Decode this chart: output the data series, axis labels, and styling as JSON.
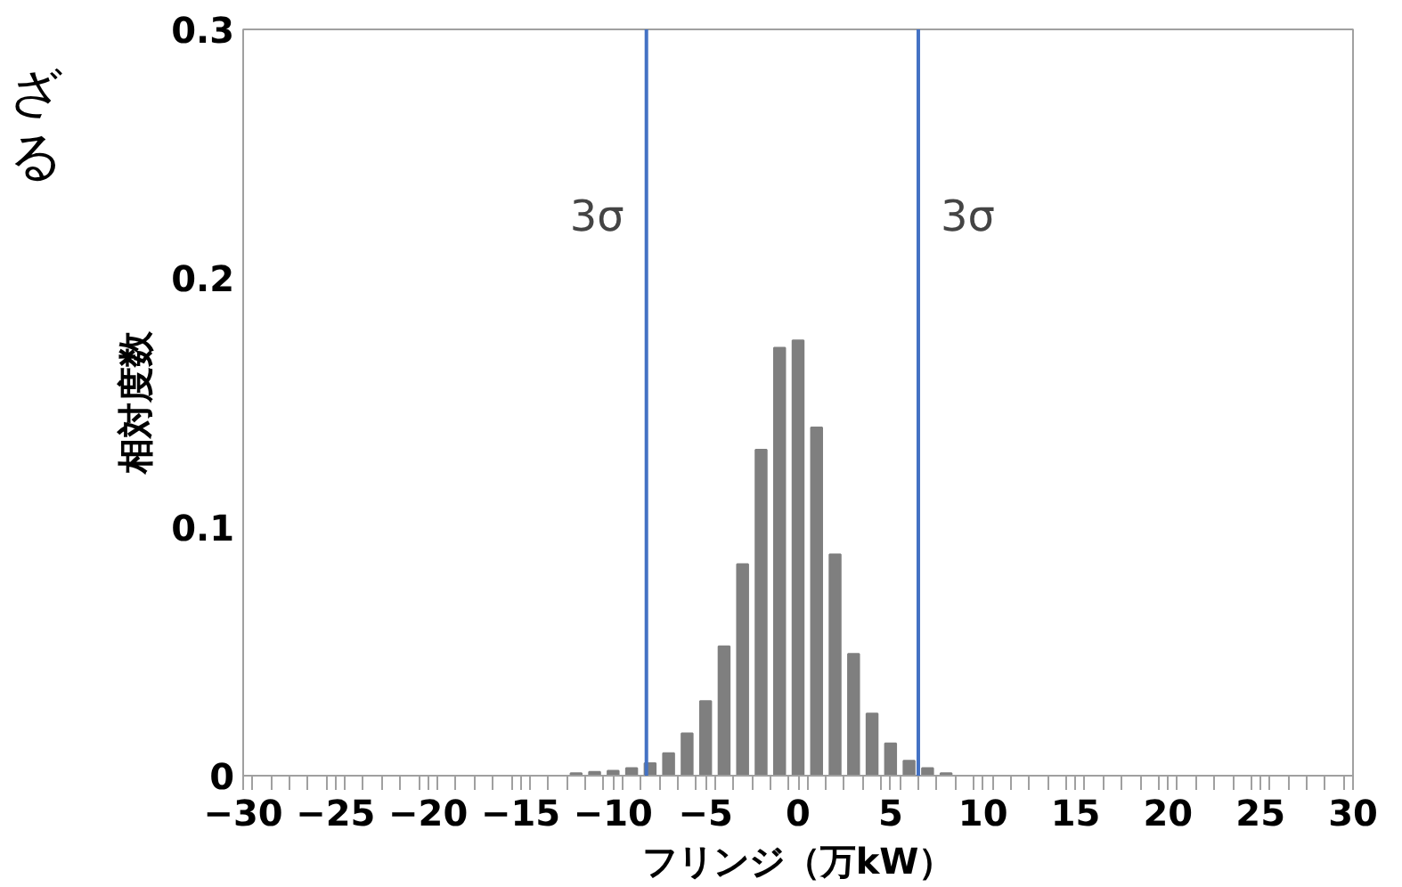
{
  "chart_data": {
    "type": "histogram",
    "xlabel": "フリンジ（万kW）",
    "ylabel": "相対度数",
    "bins": [
      -29.5,
      -28.5,
      -27.5,
      -26.5,
      -25.5,
      -24.5,
      -23.5,
      -22.5,
      -21.5,
      -20.5,
      -19.5,
      -18.5,
      -17.5,
      -16.5,
      -15.5,
      -14.5,
      -13.5,
      -12.5,
      -11.5,
      -10.5,
      -9.5,
      -8.5,
      -7.5,
      -6.5,
      -5.5,
      -4.5,
      -3.5,
      -2.5,
      -1.5,
      -0.5,
      0.5,
      1.5,
      2.5,
      3.5,
      4.5,
      5.5,
      6.5,
      7.5,
      8.5,
      9.5,
      10.5,
      11.5,
      12.5,
      13.5,
      14.5,
      15.5,
      16.5,
      17.5,
      18.5,
      19.5,
      20.5,
      21.5,
      22.5,
      23.5,
      24.5,
      25.5,
      26.5,
      27.5,
      28.5,
      29.5
    ],
    "values": [
      0,
      0,
      0,
      0,
      0,
      0,
      0,
      0,
      0,
      0,
      0,
      0,
      0,
      0,
      0,
      0,
      0,
      0.001,
      0.0015,
      0.002,
      0.003,
      0.005,
      0.009,
      0.017,
      0.03,
      0.052,
      0.085,
      0.131,
      0.172,
      0.175,
      0.14,
      0.089,
      0.049,
      0.025,
      0.013,
      0.006,
      0.003,
      0.001,
      0,
      0,
      0,
      0,
      0,
      0,
      0,
      0,
      0,
      0,
      0,
      0,
      0,
      0,
      0,
      0,
      0,
      0,
      0,
      0,
      0
    ],
    "color": "#7f7f7f",
    "xlim": [
      -30,
      30
    ],
    "xticks": [
      -30,
      -25,
      -20,
      -15,
      -10,
      -5,
      0,
      5,
      10,
      15,
      20,
      25,
      30
    ],
    "ylim": [
      0,
      0.3
    ],
    "yticks": [
      0,
      0.1,
      0.2,
      0.3
    ],
    "grid": false,
    "ref_lines": [
      {
        "axis": "x",
        "value": -8.2,
        "label": "3σ",
        "color": "#4472c4"
      },
      {
        "axis": "x",
        "value": 6.5,
        "label": "3σ",
        "color": "#4472c4"
      }
    ],
    "annotations": [
      "ざる"
    ]
  }
}
